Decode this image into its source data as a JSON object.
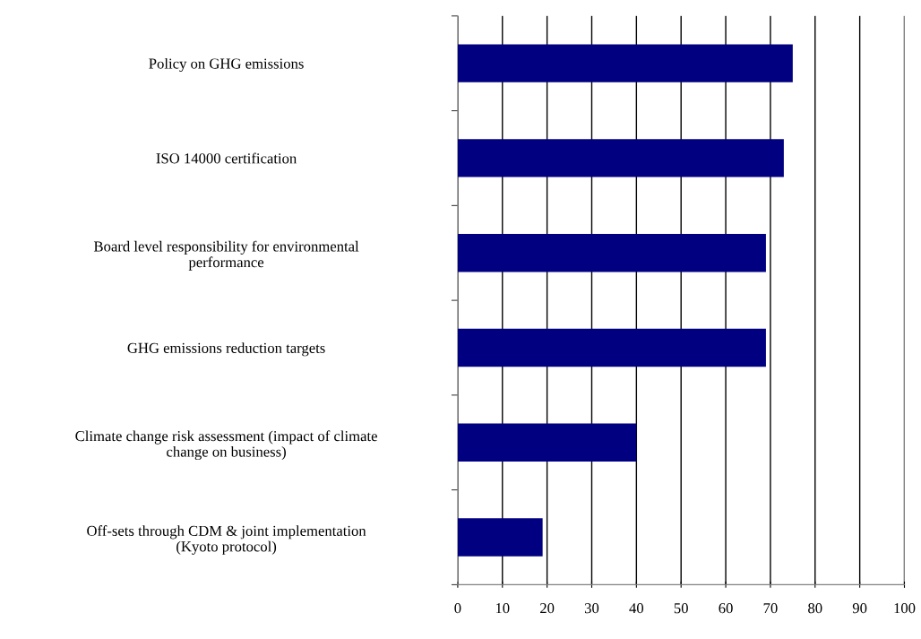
{
  "chart_data": {
    "type": "bar",
    "orientation": "horizontal",
    "categories": [
      "Policy on GHG emissions",
      "ISO 14000 certification",
      "Board level responsibility for environmental\nperformance",
      "GHG emissions reduction targets",
      "Climate change risk assessment (impact of climate\nchange on business)",
      "Off-sets through CDM & joint implementation\n(Kyoto protocol)"
    ],
    "values": [
      75,
      73,
      69,
      69,
      40,
      19
    ],
    "color": "#000080",
    "xlim": [
      0,
      100
    ],
    "xticks": [
      0,
      10,
      20,
      30,
      40,
      50,
      60,
      70,
      80,
      90,
      100
    ],
    "grid": "x",
    "legend": false
  }
}
